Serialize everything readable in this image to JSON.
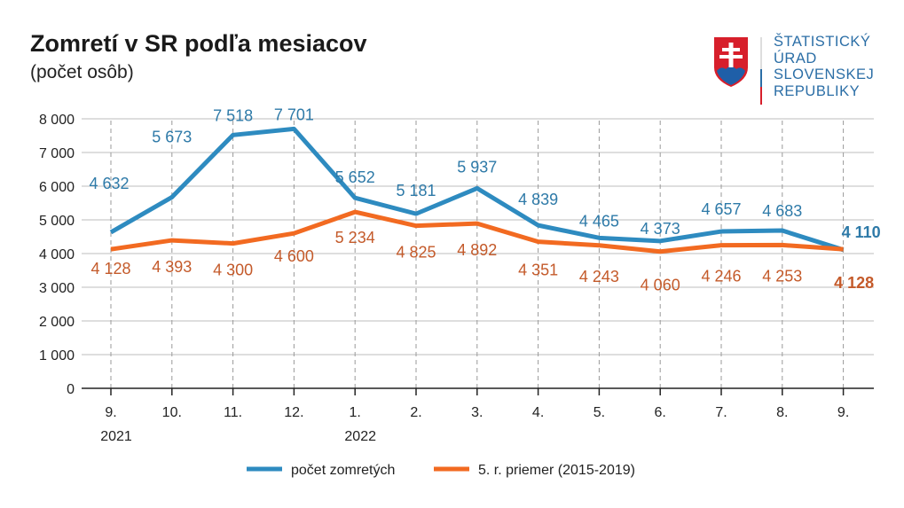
{
  "title": "Zomretí v SR podľa mesiacov",
  "subtitle": "(počet osôb)",
  "logo": {
    "text_lines": [
      "ŠTATISTICKÝ",
      "ÚRAD",
      "SLOVENSKEJ",
      "REPUBLIKY"
    ]
  },
  "chart_data": {
    "type": "line",
    "categories": [
      "9.",
      "10.",
      "11.",
      "12.",
      "1.",
      "2.",
      "3.",
      "4.",
      "5.",
      "6.",
      "7.",
      "8.",
      "9."
    ],
    "year_labels": [
      {
        "index": 0,
        "label": "2021"
      },
      {
        "index": 4,
        "label": "2022"
      }
    ],
    "ylim": [
      0,
      8000
    ],
    "yticks": [
      0,
      1000,
      2000,
      3000,
      4000,
      5000,
      6000,
      7000,
      8000
    ],
    "ytick_labels": [
      "0",
      "1 000",
      "2 000",
      "3 000",
      "4 000",
      "5 000",
      "6 000",
      "7 000",
      "8 000"
    ],
    "grid": true,
    "legend_position": "bottom",
    "series": [
      {
        "name": "počet zomretých",
        "color": "#2e8bc0",
        "label_color": "#2e7aa8",
        "values": [
          4632,
          5673,
          7518,
          7701,
          5652,
          5181,
          5937,
          4839,
          4465,
          4373,
          4657,
          4683,
          4110
        ],
        "labels": [
          "4 632",
          "5 673",
          "7 518",
          "7 701",
          "5 652",
          "5 181",
          "5 937",
          "4 839",
          "4 465",
          "4 373",
          "4 657",
          "4 683",
          "4 110"
        ]
      },
      {
        "name": "5. r. priemer (2015-2019)",
        "color": "#f26a21",
        "label_color": "#c45a2a",
        "values": [
          4128,
          4393,
          4300,
          4600,
          5234,
          4825,
          4892,
          4351,
          4243,
          4060,
          4246,
          4253,
          4128
        ],
        "labels": [
          "4 128",
          "4 393",
          "4 300",
          "4 600",
          "5 234",
          "4 825",
          "4 892",
          "4 351",
          "4 243",
          "4 060",
          "4 246",
          "4 253",
          "4 128"
        ]
      }
    ]
  }
}
